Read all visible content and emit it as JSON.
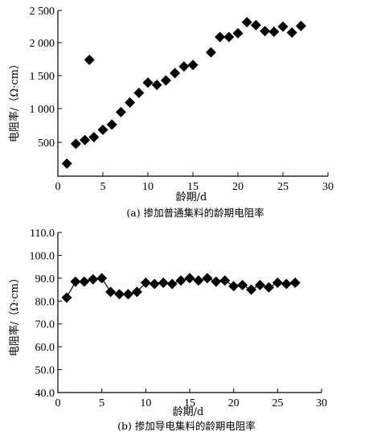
{
  "chart_data": [
    {
      "type": "scatter",
      "caption": "(a) 掺加普通集料的龄期电阻率",
      "xlabel": "龄期/d",
      "ylabel": "电阻率/（Ω·cm）",
      "xlim": [
        0,
        30
      ],
      "ylim": [
        250,
        2500
      ],
      "x_ticks": [
        "0",
        "5",
        "10",
        "15",
        "20",
        "25",
        "30"
      ],
      "y_ticks": [
        "500",
        "1 000",
        "1 500",
        "2 000",
        "2 500"
      ],
      "grid": false,
      "series": [
        {
          "x": [
            1,
            2,
            3,
            3.5,
            4,
            5,
            6,
            7,
            8,
            9,
            10,
            11,
            12,
            13,
            14,
            15,
            17,
            18,
            19,
            20,
            21,
            22,
            23,
            24,
            25,
            26,
            27
          ],
          "y": [
            420,
            690,
            740,
            1830,
            780,
            880,
            950,
            1120,
            1250,
            1380,
            1520,
            1490,
            1550,
            1650,
            1740,
            1760,
            1930,
            2140,
            2140,
            2190,
            2340,
            2300,
            2220,
            2210,
            2280,
            2200,
            2290
          ]
        }
      ]
    },
    {
      "type": "line",
      "caption": "(b) 掺加导电集料的龄期电阻率",
      "xlabel": "龄期/d",
      "ylabel": "电阻率/（Ω·cm）",
      "xlim": [
        0,
        30
      ],
      "ylim": [
        40,
        110
      ],
      "x_ticks": [
        "0",
        "5",
        "10",
        "15",
        "20",
        "25",
        "30"
      ],
      "y_ticks": [
        "40.0",
        "50.0",
        "60.0",
        "70.0",
        "80.0",
        "90.0",
        "100.0",
        "110.0"
      ],
      "grid": false,
      "series": [
        {
          "x": [
            1,
            2,
            3,
            4,
            5,
            6,
            7,
            8,
            9,
            10,
            11,
            12,
            13,
            14,
            15,
            16,
            17,
            18,
            19,
            20,
            21,
            22,
            23,
            24,
            25,
            26,
            27
          ],
          "y": [
            81.5,
            88.5,
            88.5,
            89.5,
            90,
            84,
            83,
            83,
            84,
            88,
            87.5,
            88,
            87.5,
            89,
            90,
            89,
            90,
            88.5,
            89,
            86.5,
            87,
            85,
            87,
            86,
            88,
            87.5,
            88
          ]
        }
      ]
    }
  ]
}
